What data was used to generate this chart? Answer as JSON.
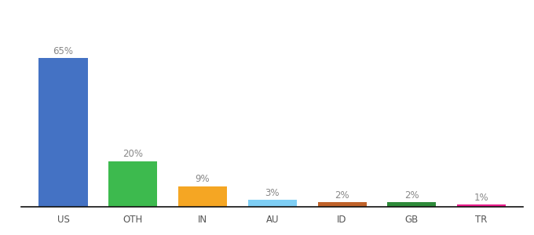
{
  "categories": [
    "US",
    "OTH",
    "IN",
    "AU",
    "ID",
    "GB",
    "TR"
  ],
  "values": [
    65,
    20,
    9,
    3,
    2,
    2,
    1
  ],
  "labels": [
    "65%",
    "20%",
    "9%",
    "3%",
    "2%",
    "2%",
    "1%"
  ],
  "bar_colors": [
    "#4472c4",
    "#3dba4e",
    "#f5a623",
    "#7ecef4",
    "#c0622a",
    "#2e8b3a",
    "#e91e8c"
  ],
  "background_color": "#ffffff",
  "ylim": [
    0,
    78
  ],
  "label_fontsize": 8.5,
  "tick_fontsize": 8.5,
  "label_color": "#888888",
  "tick_color": "#555555",
  "bar_width": 0.7
}
